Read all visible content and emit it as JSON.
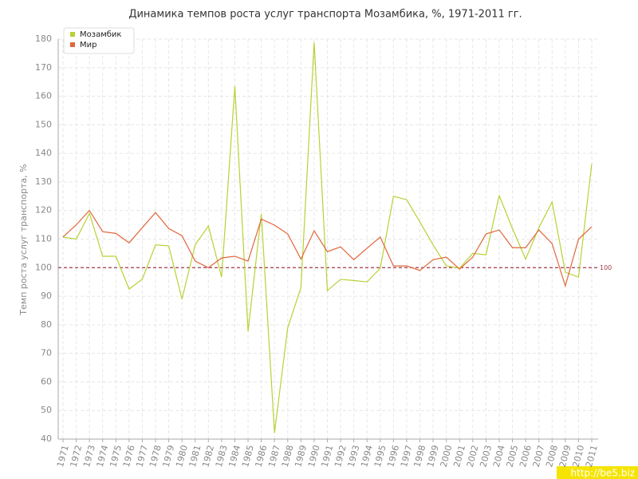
{
  "chart_data": {
    "type": "line",
    "title": "Динамика темпов роста услуг транспорта Мозамбика, %, 1971-2011 гг.",
    "y_label": "Темп роста услуг транспорта, %",
    "categories": [
      "1971",
      "1972",
      "1973",
      "1974",
      "1975",
      "1976",
      "1977",
      "1978",
      "1979",
      "1980",
      "1981",
      "1982",
      "1983",
      "1984",
      "1985",
      "1986",
      "1987",
      "1988",
      "1989",
      "1990",
      "1991",
      "1992",
      "1993",
      "1994",
      "1995",
      "1996",
      "1997",
      "1998",
      "1999",
      "2000",
      "2001",
      "2002",
      "2003",
      "2004",
      "2005",
      "2006",
      "2007",
      "2008",
      "2009",
      "2010",
      "2011"
    ],
    "series": [
      {
        "name": "Мозамбик",
        "color": "#b5d334",
        "values": [
          110.7,
          110,
          119,
          104,
          104,
          92.5,
          96,
          108,
          107.6,
          89,
          108,
          114.6,
          96.7,
          163.5,
          77.7,
          118.8,
          42.2,
          79,
          93,
          178.8,
          92,
          95.9,
          95.5,
          95,
          99.8,
          125,
          123.8,
          116,
          108,
          100.6,
          99.8,
          105,
          104.5,
          125.2,
          113.7,
          103,
          114,
          123,
          98.4,
          96.7,
          136.4
        ]
      },
      {
        "name": "Мир",
        "color": "#e0673c",
        "values": [
          110.7,
          115,
          120,
          112.6,
          112,
          108.7,
          114,
          119.3,
          113.7,
          111.2,
          102.3,
          100,
          103.4,
          104,
          102.3,
          117,
          114.9,
          111.8,
          103,
          112.9,
          105.6,
          107.3,
          102.8,
          106.8,
          110.7,
          100.6,
          100.6,
          99,
          102.8,
          103.7,
          99.5,
          103.7,
          111.8,
          113.2,
          107,
          107,
          113.2,
          108.4,
          93.6,
          110,
          114.3
        ]
      }
    ],
    "reference_line": {
      "value": 100,
      "color": "#a33a4a"
    },
    "ylim": [
      40,
      180
    ],
    "yticks": [
      40,
      50,
      60,
      70,
      80,
      90,
      100,
      110,
      120,
      130,
      140,
      150,
      160,
      170,
      180
    ],
    "grid": true,
    "legend": "top-left",
    "watermark": "http://be5.biz"
  }
}
